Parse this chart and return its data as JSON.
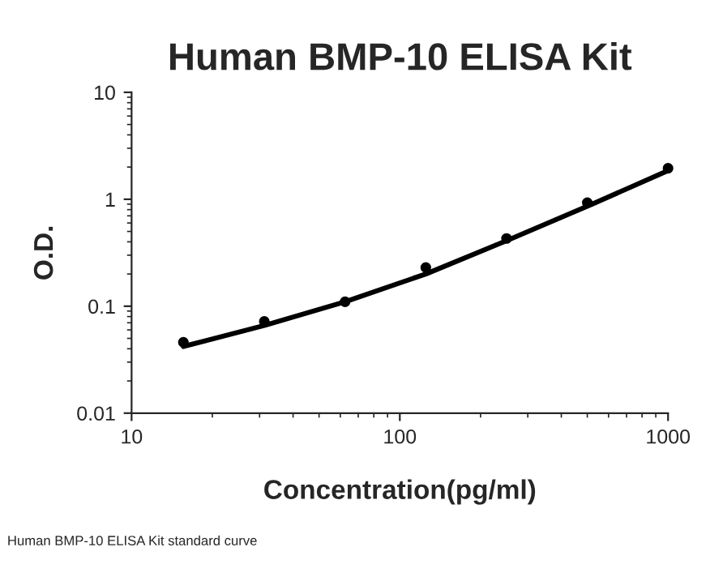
{
  "chart_data": {
    "type": "scatter",
    "title": "Human BMP-10 ELISA Kit",
    "xlabel": "Concentration(pg/ml)",
    "ylabel": "O.D.",
    "log": "xy",
    "xlim": [
      10,
      1000
    ],
    "xticks": [
      10,
      100,
      1000
    ],
    "ylim": [
      0.01,
      10
    ],
    "yticks": [
      0.01,
      0.1,
      1,
      10
    ],
    "grid": false,
    "legend": false,
    "annotations": [
      "Human BMP-10 ELISA Kit standard curve"
    ],
    "series": [
      {
        "color": "#000000",
        "marker": "circle",
        "x": [
          15.6,
          31.25,
          62.5,
          125,
          250,
          500,
          1000
        ],
        "values": [
          0.046,
          0.072,
          0.11,
          0.23,
          0.43,
          0.93,
          1.95
        ]
      },
      {
        "type": "line",
        "color": "#000000",
        "marker": "none",
        "line_style": "solid",
        "x": [
          15.6,
          31.25,
          62.5,
          125,
          250,
          500,
          1000
        ],
        "values": [
          0.042,
          0.066,
          0.11,
          0.2,
          0.41,
          0.86,
          1.85
        ]
      }
    ]
  }
}
